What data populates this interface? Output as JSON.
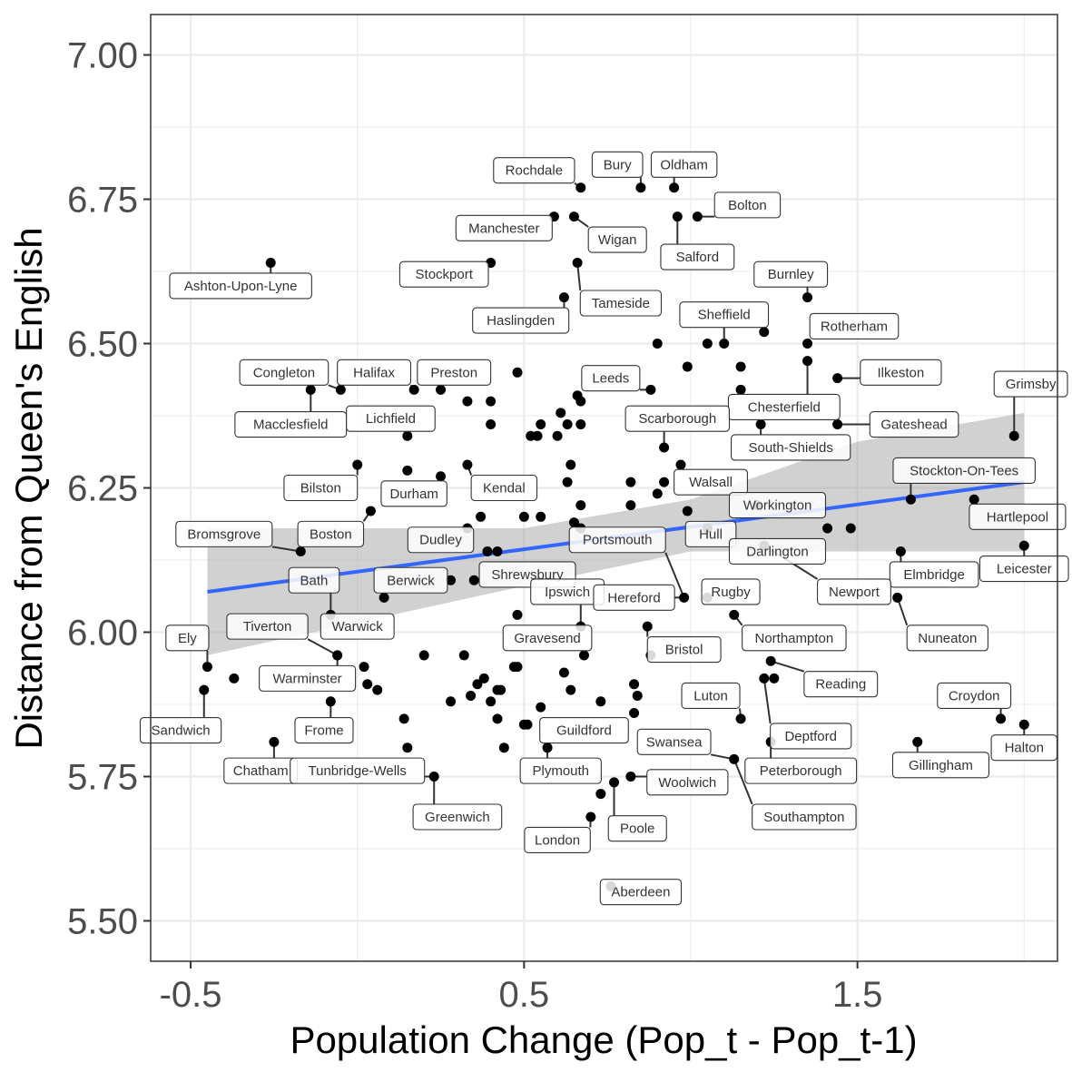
{
  "chart_data": {
    "type": "scatter",
    "title": "",
    "xlabel": "Population Change (Pop_t - Pop_t-1)",
    "ylabel": "Distance from Queen's English",
    "xlim": [
      -0.62,
      2.1
    ],
    "ylim": [
      5.43,
      7.07
    ],
    "x_ticks": [
      -0.5,
      0.5,
      1.5
    ],
    "x_tick_labels": [
      "-0.5",
      "0.5",
      "1.5"
    ],
    "y_ticks": [
      5.5,
      5.75,
      6.0,
      6.25,
      6.5,
      6.75,
      7.0
    ],
    "y_tick_labels": [
      "5.50",
      "5.75",
      "6.00",
      "6.25",
      "6.50",
      "6.75",
      "7.00"
    ],
    "grid": true,
    "trend": {
      "x0": -0.45,
      "y0": 6.07,
      "x1": 2.0,
      "y1": 6.26,
      "band_x": [
        -0.45,
        0.5,
        1.0,
        1.5,
        2.0
      ],
      "band_lo": [
        5.96,
        6.08,
        6.14,
        6.14,
        6.14
      ],
      "band_hi": [
        6.18,
        6.18,
        6.23,
        6.33,
        6.38
      ]
    },
    "colors": {
      "point": "#000000",
      "trend": "#3366ff",
      "band": "#999999",
      "panel_border": "#333333",
      "grid": "#ebebeb"
    },
    "points": [
      [
        -0.26,
        6.64
      ],
      [
        0.67,
        6.77
      ],
      [
        0.85,
        6.77
      ],
      [
        0.95,
        6.77
      ],
      [
        0.59,
        6.72
      ],
      [
        0.65,
        6.72
      ],
      [
        0.96,
        6.72
      ],
      [
        1.02,
        6.72
      ],
      [
        0.4,
        6.64
      ],
      [
        0.66,
        6.64
      ],
      [
        0.62,
        6.58
      ],
      [
        1.35,
        6.58
      ],
      [
        0.9,
        6.5
      ],
      [
        1.05,
        6.5
      ],
      [
        1.1,
        6.5
      ],
      [
        1.22,
        6.52
      ],
      [
        1.35,
        6.5
      ],
      [
        0.99,
        6.46
      ],
      [
        1.15,
        6.46
      ],
      [
        1.35,
        6.47
      ],
      [
        0.48,
        6.45
      ],
      [
        1.44,
        6.44
      ],
      [
        -0.05,
        6.42
      ],
      [
        -0.14,
        6.42
      ],
      [
        0.17,
        6.42
      ],
      [
        0.25,
        6.42
      ],
      [
        0.33,
        6.4
      ],
      [
        0.4,
        6.4
      ],
      [
        0.66,
        6.41
      ],
      [
        0.67,
        6.4
      ],
      [
        0.88,
        6.42
      ],
      [
        1.15,
        6.42
      ],
      [
        0.4,
        6.36
      ],
      [
        0.55,
        6.36
      ],
      [
        0.6,
        6.34
      ],
      [
        0.63,
        6.36
      ],
      [
        0.52,
        6.34
      ],
      [
        0.54,
        6.34
      ],
      [
        0.67,
        6.36
      ],
      [
        0.61,
        6.38
      ],
      [
        1.21,
        6.36
      ],
      [
        1.44,
        6.36
      ],
      [
        0.15,
        6.34
      ],
      [
        0.92,
        6.32
      ],
      [
        1.97,
        6.34
      ],
      [
        0.0,
        6.29
      ],
      [
        0.33,
        6.29
      ],
      [
        0.64,
        6.29
      ],
      [
        0.15,
        6.28
      ],
      [
        0.25,
        6.27
      ],
      [
        0.63,
        6.26
      ],
      [
        0.82,
        6.26
      ],
      [
        0.97,
        6.29
      ],
      [
        0.92,
        6.26
      ],
      [
        0.9,
        6.24
      ],
      [
        0.82,
        6.22
      ],
      [
        0.67,
        6.22
      ],
      [
        0.5,
        6.2
      ],
      [
        0.33,
        6.18
      ],
      [
        0.04,
        6.21
      ],
      [
        1.66,
        6.23
      ],
      [
        1.85,
        6.23
      ],
      [
        1.2,
        6.22
      ],
      [
        0.99,
        6.21
      ],
      [
        0.55,
        6.2
      ],
      [
        0.37,
        6.2
      ],
      [
        0.65,
        6.19
      ],
      [
        0.67,
        6.18
      ],
      [
        1.05,
        6.18
      ],
      [
        1.41,
        6.18
      ],
      [
        1.48,
        6.18
      ],
      [
        1.22,
        6.15
      ],
      [
        0.39,
        6.14
      ],
      [
        0.42,
        6.14
      ],
      [
        -0.17,
        6.14
      ],
      [
        1.63,
        6.14
      ],
      [
        2.0,
        6.15
      ],
      [
        0.28,
        6.09
      ],
      [
        0.35,
        6.09
      ],
      [
        0.08,
        6.06
      ],
      [
        0.98,
        6.06
      ],
      [
        1.05,
        6.06
      ],
      [
        -0.08,
        6.03
      ],
      [
        0.48,
        6.03
      ],
      [
        1.62,
        6.06
      ],
      [
        1.13,
        6.03
      ],
      [
        0.67,
        6.01
      ],
      [
        0.87,
        6.01
      ],
      [
        -0.06,
        5.96
      ],
      [
        0.02,
        5.94
      ],
      [
        0.2,
        5.96
      ],
      [
        0.32,
        5.96
      ],
      [
        0.38,
        5.92
      ],
      [
        0.36,
        5.91
      ],
      [
        0.34,
        5.89
      ],
      [
        0.4,
        5.88
      ],
      [
        0.42,
        5.9
      ],
      [
        0.43,
        5.9
      ],
      [
        0.47,
        5.94
      ],
      [
        0.48,
        5.94
      ],
      [
        0.62,
        5.93
      ],
      [
        0.64,
        5.9
      ],
      [
        0.68,
        5.96
      ],
      [
        0.88,
        5.96
      ],
      [
        0.83,
        5.91
      ],
      [
        0.84,
        5.89
      ],
      [
        1.24,
        5.95
      ],
      [
        1.22,
        5.92
      ],
      [
        1.25,
        5.92
      ],
      [
        -0.45,
        5.94
      ],
      [
        -0.37,
        5.92
      ],
      [
        0.03,
        5.91
      ],
      [
        0.06,
        5.9
      ],
      [
        0.14,
        5.85
      ],
      [
        0.15,
        5.8
      ],
      [
        0.28,
        5.88
      ],
      [
        0.42,
        5.85
      ],
      [
        0.44,
        5.8
      ],
      [
        0.5,
        5.84
      ],
      [
        0.51,
        5.84
      ],
      [
        0.55,
        5.87
      ],
      [
        0.57,
        5.8
      ],
      [
        0.73,
        5.88
      ],
      [
        0.83,
        5.86
      ],
      [
        1.15,
        5.85
      ],
      [
        1.24,
        5.81
      ],
      [
        -0.46,
        5.9
      ],
      [
        -0.08,
        5.88
      ],
      [
        -0.25,
        5.81
      ],
      [
        0.23,
        5.75
      ],
      [
        0.82,
        5.75
      ],
      [
        0.77,
        5.74
      ],
      [
        0.73,
        5.72
      ],
      [
        0.7,
        5.68
      ],
      [
        1.13,
        5.78
      ],
      [
        1.68,
        5.81
      ],
      [
        1.93,
        5.85
      ],
      [
        2.0,
        5.84
      ],
      [
        0.76,
        5.56
      ]
    ],
    "labels": [
      {
        "text": "Ashton-Upon-Lyne",
        "lx": -0.35,
        "ly": 6.6,
        "px": -0.26,
        "py": 6.64
      },
      {
        "text": "Rochdale",
        "lx": 0.53,
        "ly": 6.8,
        "px": 0.67,
        "py": 6.77
      },
      {
        "text": "Bury",
        "lx": 0.78,
        "ly": 6.81,
        "px": 0.85,
        "py": 6.77
      },
      {
        "text": "Oldham",
        "lx": 0.98,
        "ly": 6.81,
        "px": 0.95,
        "py": 6.77
      },
      {
        "text": "Bolton",
        "lx": 1.17,
        "ly": 6.74,
        "px": 1.02,
        "py": 6.72
      },
      {
        "text": "Manchester",
        "lx": 0.44,
        "ly": 6.7,
        "px": 0.59,
        "py": 6.72
      },
      {
        "text": "Wigan",
        "lx": 0.78,
        "ly": 6.68,
        "px": 0.65,
        "py": 6.72
      },
      {
        "text": "Salford",
        "lx": 1.02,
        "ly": 6.65,
        "px": 0.96,
        "py": 6.72
      },
      {
        "text": "Stockport",
        "lx": 0.26,
        "ly": 6.62,
        "px": 0.4,
        "py": 6.64
      },
      {
        "text": "Tameside",
        "lx": 0.79,
        "ly": 6.57,
        "px": 0.66,
        "py": 6.64
      },
      {
        "text": "Haslingden",
        "lx": 0.49,
        "ly": 6.54,
        "px": 0.62,
        "py": 6.58
      },
      {
        "text": "Burnley",
        "lx": 1.3,
        "ly": 6.62,
        "px": 1.35,
        "py": 6.58
      },
      {
        "text": "Sheffield",
        "lx": 1.1,
        "ly": 6.55,
        "px": 1.1,
        "py": 6.5
      },
      {
        "text": "Rotherham",
        "lx": 1.49,
        "ly": 6.53,
        "px": 1.35,
        "py": 6.5
      },
      {
        "text": "Ilkeston",
        "lx": 1.63,
        "ly": 6.45,
        "px": 1.44,
        "py": 6.44
      },
      {
        "text": "Grimsby",
        "lx": 2.02,
        "ly": 6.43,
        "px": 1.97,
        "py": 6.34
      },
      {
        "text": "Congleton",
        "lx": -0.22,
        "ly": 6.45,
        "px": -0.05,
        "py": 6.42
      },
      {
        "text": "Halifax",
        "lx": 0.05,
        "ly": 6.45,
        "px": 0.17,
        "py": 6.42
      },
      {
        "text": "Preston",
        "lx": 0.29,
        "ly": 6.45,
        "px": 0.25,
        "py": 6.42
      },
      {
        "text": "Leeds",
        "lx": 0.76,
        "ly": 6.44,
        "px": 0.88,
        "py": 6.42
      },
      {
        "text": "Chesterfield",
        "lx": 1.28,
        "ly": 6.39,
        "px": 1.35,
        "py": 6.47
      },
      {
        "text": "Macclesfield",
        "lx": -0.2,
        "ly": 6.36,
        "px": -0.14,
        "py": 6.42
      },
      {
        "text": "Lichfield",
        "lx": 0.1,
        "ly": 6.37,
        "px": 0.15,
        "py": 6.34
      },
      {
        "text": "Scarborough",
        "lx": 0.96,
        "ly": 6.37,
        "px": 0.92,
        "py": 6.32
      },
      {
        "text": "Gateshead",
        "lx": 1.67,
        "ly": 6.36,
        "px": 1.44,
        "py": 6.36
      },
      {
        "text": "South-Shields",
        "lx": 1.3,
        "ly": 6.32,
        "px": 1.21,
        "py": 6.36
      },
      {
        "text": "Stockton-On-Tees",
        "lx": 1.82,
        "ly": 6.28,
        "px": 1.66,
        "py": 6.23
      },
      {
        "text": "Bilston",
        "lx": -0.11,
        "ly": 6.25,
        "px": 0.0,
        "py": 6.29
      },
      {
        "text": "Durham",
        "lx": 0.17,
        "ly": 6.24,
        "px": 0.25,
        "py": 6.27
      },
      {
        "text": "Kendal",
        "lx": 0.44,
        "ly": 6.25,
        "px": 0.33,
        "py": 6.29
      },
      {
        "text": "Walsall",
        "lx": 1.06,
        "ly": 6.26,
        "px": 0.97,
        "py": 6.29
      },
      {
        "text": "Workington",
        "lx": 1.26,
        "ly": 6.22,
        "px": 1.2,
        "py": 6.22
      },
      {
        "text": "Hartlepool",
        "lx": 1.98,
        "ly": 6.2,
        "px": 1.85,
        "py": 6.23
      },
      {
        "text": "Bromsgrove",
        "lx": -0.4,
        "ly": 6.17,
        "px": -0.17,
        "py": 6.14
      },
      {
        "text": "Boston",
        "lx": -0.08,
        "ly": 6.17,
        "px": 0.04,
        "py": 6.21
      },
      {
        "text": "Dudley",
        "lx": 0.25,
        "ly": 6.16,
        "px": 0.33,
        "py": 6.18
      },
      {
        "text": "Portsmouth",
        "lx": 0.78,
        "ly": 6.16,
        "px": 0.98,
        "py": 6.06
      },
      {
        "text": "Hull",
        "lx": 1.06,
        "ly": 6.17,
        "px": 1.05,
        "py": 6.18
      },
      {
        "text": "Darlington",
        "lx": 1.26,
        "ly": 6.14,
        "px": 1.22,
        "py": 6.15
      },
      {
        "text": "Elmbridge",
        "lx": 1.73,
        "ly": 6.1,
        "px": 1.63,
        "py": 6.14
      },
      {
        "text": "Leicester",
        "lx": 2.0,
        "ly": 6.11,
        "px": 2.0,
        "py": 6.15
      },
      {
        "text": "Bath",
        "lx": -0.13,
        "ly": 6.09,
        "px": -0.08,
        "py": 6.03
      },
      {
        "text": "Berwick",
        "lx": 0.16,
        "ly": 6.09,
        "px": 0.08,
        "py": 6.06
      },
      {
        "text": "Shrewsbury",
        "lx": 0.51,
        "ly": 6.1,
        "px": 0.35,
        "py": 6.09
      },
      {
        "text": "Newport",
        "lx": 1.49,
        "ly": 6.07,
        "px": 1.22,
        "py": 6.15
      },
      {
        "text": "Ipswich",
        "lx": 0.63,
        "ly": 6.07,
        "px": 0.67,
        "py": 6.01
      },
      {
        "text": "Hereford",
        "lx": 0.83,
        "ly": 6.06,
        "px": 0.98,
        "py": 6.06
      },
      {
        "text": "Rugby",
        "lx": 1.12,
        "ly": 6.07,
        "px": 1.05,
        "py": 6.06
      },
      {
        "text": "Ely",
        "lx": -0.51,
        "ly": 5.99,
        "px": -0.45,
        "py": 5.94
      },
      {
        "text": "Tiverton",
        "lx": -0.27,
        "ly": 6.01,
        "px": -0.06,
        "py": 5.96
      },
      {
        "text": "Warwick",
        "lx": 0.0,
        "ly": 6.01,
        "px": -0.08,
        "py": 6.03
      },
      {
        "text": "Gravesend",
        "lx": 0.57,
        "ly": 5.99,
        "px": 0.67,
        "py": 6.01
      },
      {
        "text": "Bristol",
        "lx": 0.98,
        "ly": 5.97,
        "px": 0.87,
        "py": 6.01
      },
      {
        "text": "Northampton",
        "lx": 1.31,
        "ly": 5.99,
        "px": 1.13,
        "py": 6.03
      },
      {
        "text": "Nuneaton",
        "lx": 1.77,
        "ly": 5.99,
        "px": 1.62,
        "py": 6.06
      },
      {
        "text": "Warminster",
        "lx": -0.15,
        "ly": 5.92,
        "px": -0.06,
        "py": 5.96
      },
      {
        "text": "Reading",
        "lx": 1.45,
        "ly": 5.91,
        "px": 1.24,
        "py": 5.95
      },
      {
        "text": "Croydon",
        "lx": 1.85,
        "ly": 5.89,
        "px": 1.93,
        "py": 5.85
      },
      {
        "text": "Luton",
        "lx": 1.06,
        "ly": 5.89,
        "px": 1.15,
        "py": 5.85
      },
      {
        "text": "Sandwich",
        "lx": -0.53,
        "ly": 5.83,
        "px": -0.46,
        "py": 5.9
      },
      {
        "text": "Frome",
        "lx": -0.1,
        "ly": 5.83,
        "px": -0.08,
        "py": 5.88
      },
      {
        "text": "Guildford",
        "lx": 0.68,
        "ly": 5.83,
        "px": 0.57,
        "py": 5.8
      },
      {
        "text": "Swansea",
        "lx": 0.95,
        "ly": 5.81,
        "px": 1.13,
        "py": 5.78
      },
      {
        "text": "Deptford",
        "lx": 1.36,
        "ly": 5.82,
        "px": 1.22,
        "py": 5.92
      },
      {
        "text": "Halton",
        "lx": 2.0,
        "ly": 5.8,
        "px": 2.0,
        "py": 5.84
      },
      {
        "text": "Chatham",
        "lx": -0.29,
        "ly": 5.76,
        "px": -0.25,
        "py": 5.81
      },
      {
        "text": "Tunbridge-Wells",
        "lx": 0.0,
        "ly": 5.76,
        "px": 0.23,
        "py": 5.75
      },
      {
        "text": "Plymouth",
        "lx": 0.61,
        "ly": 5.76,
        "px": 0.57,
        "py": 5.8
      },
      {
        "text": "Woolwich",
        "lx": 0.99,
        "ly": 5.74,
        "px": 0.82,
        "py": 5.75
      },
      {
        "text": "Peterborough",
        "lx": 1.33,
        "ly": 5.76,
        "px": 1.24,
        "py": 5.81
      },
      {
        "text": "Gillingham",
        "lx": 1.75,
        "ly": 5.77,
        "px": 1.68,
        "py": 5.81
      },
      {
        "text": "Greenwich",
        "lx": 0.3,
        "ly": 5.68,
        "px": 0.23,
        "py": 5.75
      },
      {
        "text": "Poole",
        "lx": 0.84,
        "ly": 5.66,
        "px": 0.77,
        "py": 5.74
      },
      {
        "text": "Southampton",
        "lx": 1.34,
        "ly": 5.68,
        "px": 1.13,
        "py": 5.78
      },
      {
        "text": "London",
        "lx": 0.6,
        "ly": 5.64,
        "px": 0.7,
        "py": 5.68
      },
      {
        "text": "Aberdeen",
        "lx": 0.85,
        "ly": 5.55,
        "px": 0.76,
        "py": 5.56
      }
    ]
  }
}
